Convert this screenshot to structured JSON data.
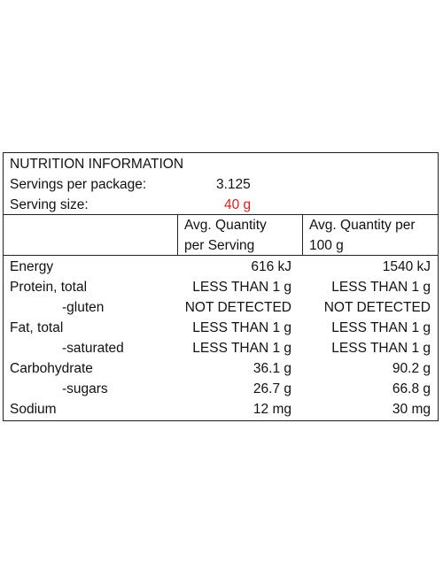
{
  "title": "NUTRITION INFORMATION",
  "servings_per_package": {
    "label": "Servings per package:",
    "value": "3.125"
  },
  "serving_size": {
    "label": "Serving size:",
    "value": "40 g",
    "value_color": "#e21b1b"
  },
  "columns": {
    "per_serving": [
      "Avg. Quantity",
      "per Serving"
    ],
    "per_100g": [
      "Avg. Quantity per",
      "100 g"
    ]
  },
  "rows": [
    {
      "label": "Energy",
      "per_serving": "616 kJ",
      "per_100g": "1540 kJ",
      "indent": false
    },
    {
      "label": "Protein, total",
      "per_serving": "LESS THAN 1 g",
      "per_100g": "LESS THAN 1 g",
      "indent": false
    },
    {
      "label": "-gluten",
      "per_serving": "NOT DETECTED",
      "per_100g": "NOT DETECTED",
      "indent": true
    },
    {
      "label": "Fat, total",
      "per_serving": "LESS THAN 1 g",
      "per_100g": "LESS THAN 1 g",
      "indent": false
    },
    {
      "label": "-saturated",
      "per_serving": "LESS THAN 1 g",
      "per_100g": "LESS THAN 1 g",
      "indent": true
    },
    {
      "label": "Carbohydrate",
      "per_serving": "36.1 g",
      "per_100g": "90.2 g",
      "indent": false
    },
    {
      "label": "-sugars",
      "per_serving": "26.7 g",
      "per_100g": "66.8 g",
      "indent": true
    },
    {
      "label": "Sodium",
      "per_serving": "12 mg",
      "per_100g": "30 mg",
      "indent": false
    }
  ]
}
